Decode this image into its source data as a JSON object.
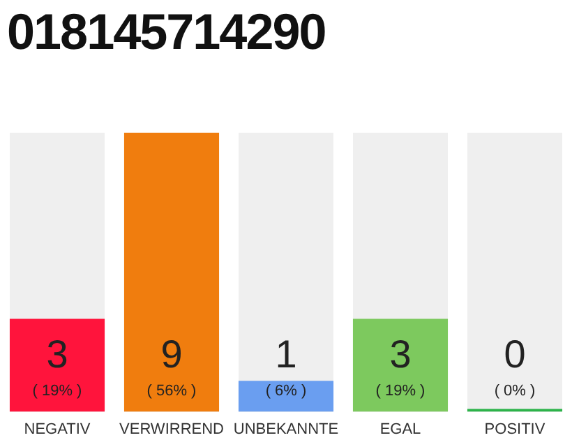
{
  "chart_data": {
    "type": "bar",
    "title": "018145714290",
    "categories": [
      "NEGATIV",
      "VERWIRREND",
      "UNBEKANNTE",
      "EGAL",
      "POSITIV"
    ],
    "values": [
      3,
      9,
      1,
      3,
      0
    ],
    "colors": [
      "#ff143c",
      "#f07d0e",
      "#6a9ef0",
      "#7dc95e",
      "#2db34a"
    ],
    "value_labels": [
      "3",
      "9",
      "1",
      "3",
      "0"
    ],
    "annotations": [
      "( 19% )",
      "( 56% )",
      "( 6% )",
      "( 19% )",
      "( 0% )"
    ],
    "tick_labels": "x",
    "grid": false,
    "legend": false
  }
}
